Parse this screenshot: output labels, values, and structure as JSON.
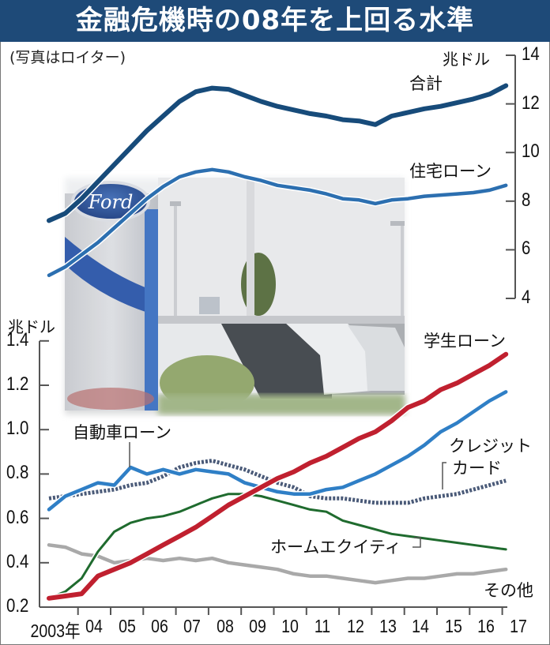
{
  "title": "金融危機時の08年を上回る水準",
  "photo_credit": "(写真はロイター)",
  "chart_data": [
    {
      "type": "line",
      "title": "金融危機時の08年を上回る水準",
      "ylabel": "兆ドル",
      "yaxis_side": "right",
      "ylim": [
        4,
        14
      ],
      "yticks": [
        "14",
        "12",
        "10",
        "8",
        "6",
        "4"
      ],
      "x": [
        2003.0,
        2003.5,
        2004.0,
        2004.5,
        2005.0,
        2005.5,
        2006.0,
        2006.5,
        2007.0,
        2007.5,
        2008.0,
        2008.5,
        2009.0,
        2009.5,
        2010.0,
        2010.5,
        2011.0,
        2011.5,
        2012.0,
        2012.5,
        2013.0,
        2013.5,
        2014.0,
        2014.5,
        2015.0,
        2015.5,
        2016.0,
        2016.5,
        2017.0
      ],
      "series": [
        {
          "name": "合計",
          "color": "#174b7a",
          "values": [
            7.2,
            7.5,
            8.1,
            8.8,
            9.5,
            10.2,
            10.9,
            11.5,
            12.1,
            12.5,
            12.65,
            12.6,
            12.35,
            12.1,
            11.9,
            11.75,
            11.6,
            11.5,
            11.35,
            11.3,
            11.15,
            11.5,
            11.65,
            11.8,
            11.9,
            12.05,
            12.2,
            12.4,
            12.75
          ]
        },
        {
          "name": "住宅ローン",
          "color": "#2c6fb0",
          "values": [
            4.95,
            5.3,
            5.8,
            6.3,
            6.9,
            7.5,
            8.1,
            8.6,
            9.0,
            9.2,
            9.3,
            9.2,
            9.0,
            8.85,
            8.65,
            8.55,
            8.45,
            8.3,
            8.1,
            8.05,
            7.9,
            8.05,
            8.1,
            8.2,
            8.25,
            8.3,
            8.35,
            8.45,
            8.65
          ]
        }
      ]
    },
    {
      "type": "line",
      "ylabel": "兆ドル",
      "yaxis_side": "left",
      "ylim": [
        0.2,
        1.4
      ],
      "yticks": [
        "1.4",
        "1.2",
        "1.0",
        "0.8",
        "0.6",
        "0.4",
        "0.2"
      ],
      "categories": [
        "2003年",
        "04",
        "05",
        "06",
        "07",
        "08",
        "09",
        "10",
        "11",
        "12",
        "13",
        "14",
        "15",
        "16",
        "17"
      ],
      "x": [
        2003.0,
        2003.5,
        2004.0,
        2004.5,
        2005.0,
        2005.5,
        2006.0,
        2006.5,
        2007.0,
        2007.5,
        2008.0,
        2008.5,
        2009.0,
        2009.5,
        2010.0,
        2010.5,
        2011.0,
        2011.5,
        2012.0,
        2012.5,
        2013.0,
        2013.5,
        2014.0,
        2014.5,
        2015.0,
        2015.5,
        2016.0,
        2016.5,
        2017.0
      ],
      "series": [
        {
          "name": "学生ローン",
          "color": "#c0202f",
          "values": [
            0.24,
            0.25,
            0.26,
            0.34,
            0.37,
            0.4,
            0.44,
            0.48,
            0.52,
            0.56,
            0.61,
            0.66,
            0.7,
            0.74,
            0.78,
            0.81,
            0.85,
            0.88,
            0.92,
            0.96,
            0.99,
            1.04,
            1.1,
            1.13,
            1.18,
            1.21,
            1.25,
            1.29,
            1.34
          ]
        },
        {
          "name": "自動車ローン",
          "color": "#2f7fc6",
          "values": [
            0.64,
            0.7,
            0.73,
            0.76,
            0.75,
            0.83,
            0.8,
            0.82,
            0.8,
            0.82,
            0.81,
            0.8,
            0.76,
            0.74,
            0.72,
            0.71,
            0.71,
            0.73,
            0.74,
            0.77,
            0.8,
            0.84,
            0.88,
            0.93,
            0.99,
            1.03,
            1.08,
            1.13,
            1.17
          ]
        },
        {
          "name": "クレジットカード",
          "color": "#4a5a78",
          "dashed": true,
          "values": [
            0.69,
            0.7,
            0.71,
            0.72,
            0.73,
            0.75,
            0.76,
            0.79,
            0.83,
            0.85,
            0.86,
            0.84,
            0.82,
            0.79,
            0.76,
            0.74,
            0.7,
            0.69,
            0.69,
            0.68,
            0.67,
            0.67,
            0.67,
            0.69,
            0.7,
            0.71,
            0.73,
            0.75,
            0.77
          ]
        },
        {
          "name": "ホームエクイティ",
          "color": "#1f6b2e",
          "values": [
            0.24,
            0.27,
            0.33,
            0.45,
            0.54,
            0.58,
            0.6,
            0.61,
            0.63,
            0.66,
            0.69,
            0.71,
            0.71,
            0.7,
            0.68,
            0.66,
            0.64,
            0.63,
            0.59,
            0.57,
            0.55,
            0.53,
            0.52,
            0.51,
            0.5,
            0.49,
            0.48,
            0.47,
            0.46
          ]
        },
        {
          "name": "その他",
          "color": "#a9a9a9",
          "values": [
            0.48,
            0.47,
            0.44,
            0.43,
            0.4,
            0.41,
            0.42,
            0.41,
            0.42,
            0.41,
            0.42,
            0.4,
            0.39,
            0.38,
            0.37,
            0.35,
            0.34,
            0.34,
            0.33,
            0.32,
            0.31,
            0.32,
            0.33,
            0.33,
            0.34,
            0.35,
            0.35,
            0.36,
            0.37
          ]
        }
      ]
    }
  ],
  "labels": {
    "unit_right": "兆ドル",
    "unit_left": "兆ドル",
    "total": "合計",
    "mortgage": "住宅ローン",
    "student": "学生ローン",
    "auto": "自動車ローン",
    "credit_line1": "クレジット",
    "credit_line2": "カード",
    "home_equity": "ホームエクイティ",
    "other": "その他"
  }
}
